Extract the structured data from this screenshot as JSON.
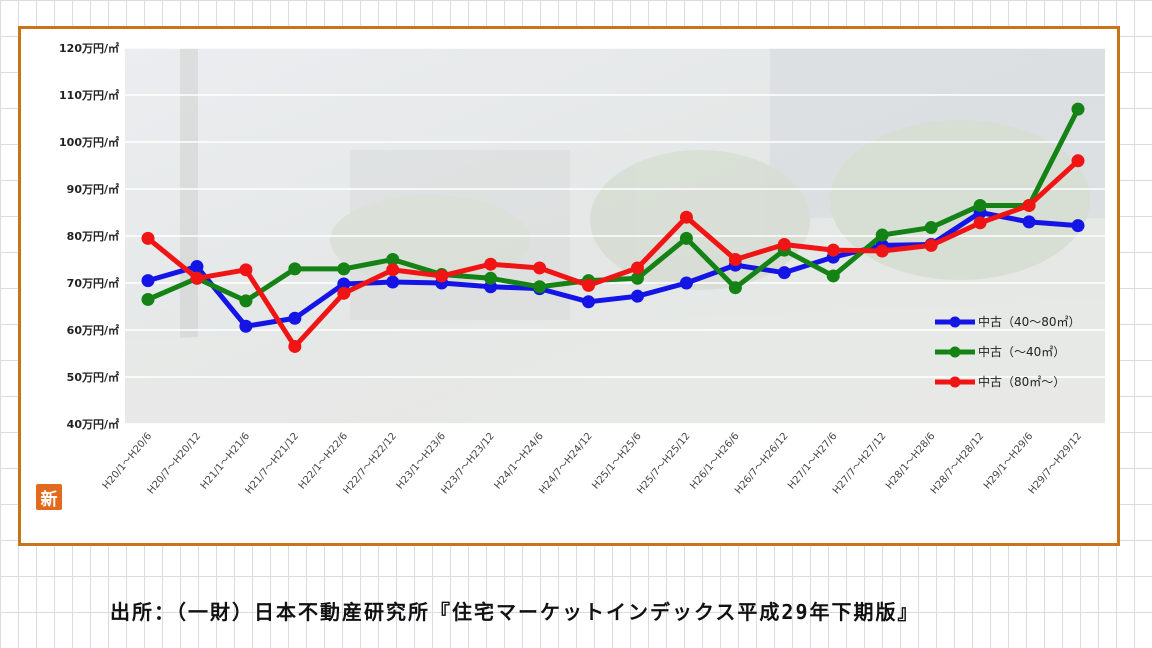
{
  "badge": {
    "label": "新"
  },
  "source": {
    "text": "出所：（一財）日本不動産研究所『住宅マーケットインデックス平成29年下期版』"
  },
  "chart_data": {
    "type": "line",
    "grid": true,
    "legend_position": "right-lower",
    "ylim": [
      40,
      120
    ],
    "y_ticks": [
      {
        "value": 120,
        "label": "120万円/㎡"
      },
      {
        "value": 110,
        "label": "110万円/㎡"
      },
      {
        "value": 100,
        "label": "100万円/㎡"
      },
      {
        "value": 90,
        "label": "90万円/㎡"
      },
      {
        "value": 80,
        "label": "80万円/㎡"
      },
      {
        "value": 70,
        "label": "70万円/㎡"
      },
      {
        "value": 60,
        "label": "60万円/㎡"
      },
      {
        "value": 50,
        "label": "50万円/㎡"
      },
      {
        "value": 40,
        "label": "40万円/㎡"
      }
    ],
    "categories": [
      "H20/1～H20/6",
      "H20/7～H20/12",
      "H21/1～H21/6",
      "H21/7～H21/12",
      "H22/1～H22/6",
      "H22/7～H22/12",
      "H23/1～H23/6",
      "H23/7～H23/12",
      "H24/1～H24/6",
      "H24/7～H24/12",
      "H25/1～H25/6",
      "H25/7～H25/12",
      "H26/1～H26/6",
      "H26/7～H26/12",
      "H27/1～H27/6",
      "H27/7～H27/12",
      "H28/1～H28/6",
      "H28/7～H28/12",
      "H29/1～H29/6",
      "H29/7～H29/12"
    ],
    "series": [
      {
        "name": "中古（40～80㎡）",
        "color": "#1414e6",
        "values": [
          70.5,
          73.5,
          60.8,
          62.5,
          69.8,
          70.2,
          70.0,
          69.2,
          68.8,
          66.0,
          67.2,
          70.0,
          73.8,
          72.2,
          75.5,
          78.0,
          78.2,
          85.0,
          83.0,
          82.2
        ]
      },
      {
        "name": "中古（～40㎡）",
        "color": "#148214",
        "values": [
          66.5,
          71.0,
          66.2,
          73.0,
          73.0,
          75.0,
          71.8,
          71.0,
          69.2,
          70.5,
          71.0,
          79.5,
          69.0,
          77.0,
          71.5,
          80.2,
          81.8,
          86.5,
          86.5,
          107.0
        ]
      },
      {
        "name": "中古（80㎡～）",
        "color": "#f01414",
        "values": [
          79.5,
          71.0,
          72.8,
          56.5,
          67.8,
          72.8,
          71.5,
          74.0,
          73.2,
          69.5,
          73.2,
          84.0,
          75.0,
          78.2,
          77.0,
          76.8,
          78.0,
          82.8,
          86.5,
          96.0
        ]
      }
    ]
  }
}
